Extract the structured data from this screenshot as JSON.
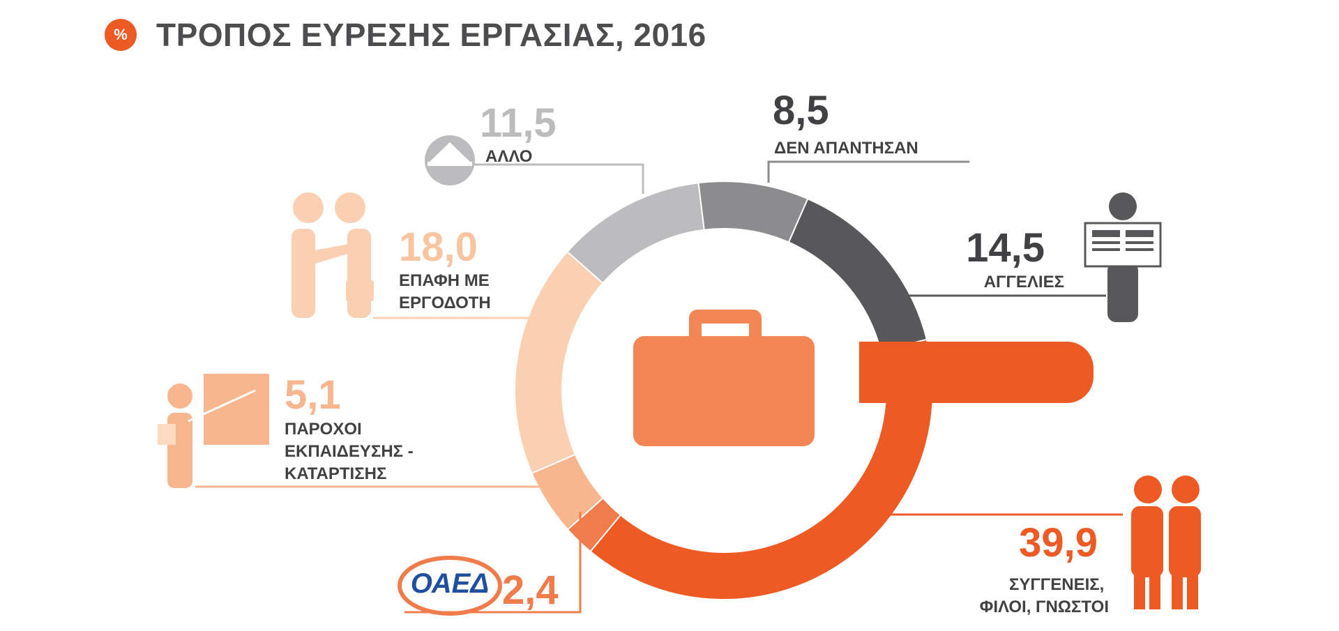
{
  "header": {
    "badge": "%",
    "title": "ΤΡΟΠΟΣ ΕΥΡΕΣΗΣ ΕΡΓΑΣΙΑΣ, 2016"
  },
  "oaed_logo_text": "ΟΑΕΔ",
  "colors": {
    "friends": "#ee5a24",
    "oaed": "#f07c4c",
    "training": "#f7b68e",
    "employer": "#fbd0b2",
    "other": "#bcbcbe",
    "no_answer": "#8c8c8e",
    "ads": "#58585a",
    "briefcase": "#f28655",
    "dark_text": "#414143"
  },
  "chart_data": {
    "type": "pie",
    "title": "ΤΡΟΠΟΣ ΕΥΡΕΣΗΣ ΕΡΓΑΣΙΑΣ, 2016",
    "unit": "%",
    "slices": [
      {
        "key": "no_answer",
        "value": 8.5,
        "value_label": "8,5",
        "label_lines": [
          "ΔΕΝ ΑΠΑΝΤΗΣΑΝ"
        ],
        "color": "#8c8c8e"
      },
      {
        "key": "ads",
        "value": 14.5,
        "value_label": "14,5",
        "label_lines": [
          "ΑΓΓΕΛΙΕΣ"
        ],
        "color": "#58585a"
      },
      {
        "key": "friends",
        "value": 39.9,
        "value_label": "39,9",
        "label_lines": [
          "ΣΥΓΓΕΝΕΙΣ,",
          "ΦΙΛΟΙ, ΓΝΩΣΤΟΙ"
        ],
        "color": "#ee5a24"
      },
      {
        "key": "oaed",
        "value": 2.4,
        "value_label": "2,4",
        "label_lines": [],
        "color": "#f07c4c"
      },
      {
        "key": "training",
        "value": 5.1,
        "value_label": "5,1",
        "label_lines": [
          "ΠΑΡΟΧΟΙ",
          "ΕΚΠΑΙΔΕΥΣΗΣ -",
          "ΚΑΤΑΡΤΙΣΗΣ"
        ],
        "color": "#f7b68e"
      },
      {
        "key": "employer",
        "value": 18.0,
        "value_label": "18,0",
        "label_lines": [
          "ΕΠΑΦΗ ΜΕ",
          "ΕΡΓΟΔΟΤΗ"
        ],
        "color": "#fbd0b2"
      },
      {
        "key": "other",
        "value": 11.5,
        "value_label": "11,5",
        "label_lines": [
          "ΑΛΛΟ"
        ],
        "color": "#bcbcbe"
      }
    ]
  }
}
